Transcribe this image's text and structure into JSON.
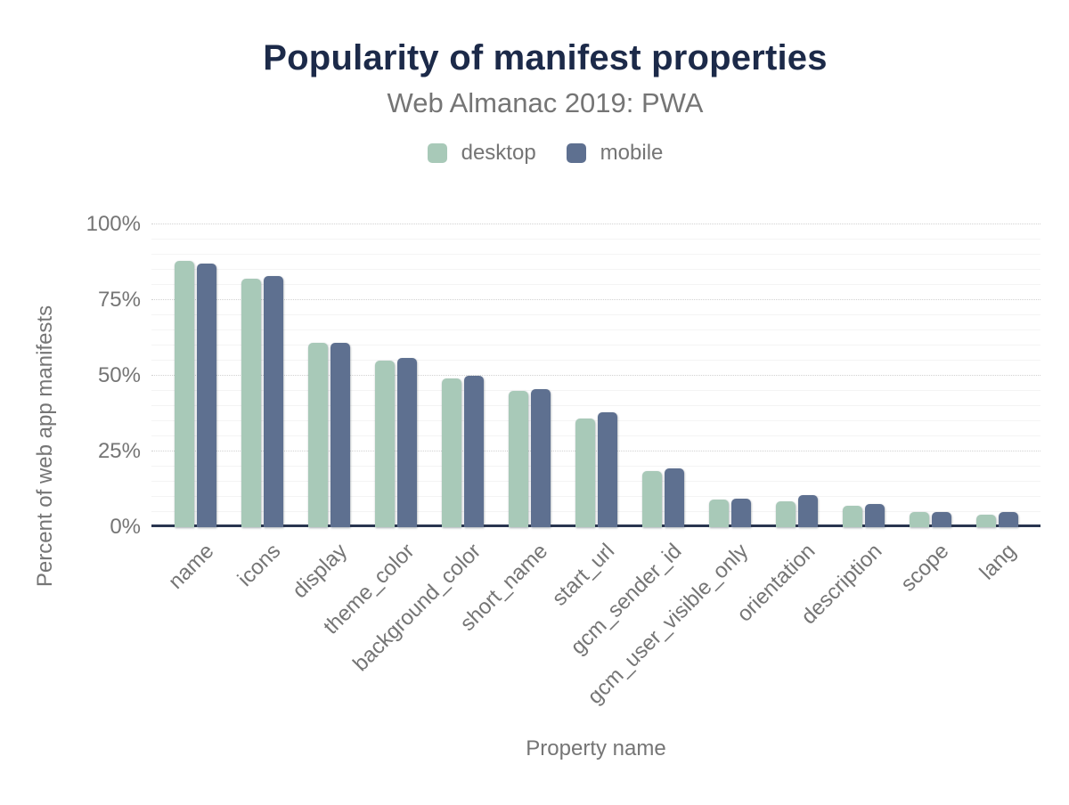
{
  "colors": {
    "title_text": "#1c2a49",
    "muted_text": "#757575",
    "axis_line": "#293550",
    "grid_major": "#d2d2d2",
    "grid_minor": "#f4f4f4",
    "background": "#ffffff",
    "desktop_bar": "#a8c9b8",
    "mobile_bar": "#5e7090"
  },
  "chart_data": {
    "type": "bar",
    "title": "Popularity of manifest properties",
    "subtitle": "Web Almanac 2019: PWA",
    "xlabel": "Property name",
    "ylabel": "Percent of web app manifests",
    "ylim": [
      0,
      100
    ],
    "yticks": [
      0,
      25,
      50,
      75,
      100
    ],
    "ytick_suffix": "%",
    "grid": "horizontal: minor solid every 5%, major dotted every 25%",
    "legend_position": "top",
    "categories": [
      "name",
      "icons",
      "display",
      "theme_color",
      "background_color",
      "short_name",
      "start_url",
      "gcm_sender_id",
      "gcm_user_visible_only",
      "orientation",
      "description",
      "scope",
      "lang"
    ],
    "series": [
      {
        "name": "desktop",
        "color": "#a8c9b8",
        "values": [
          88,
          82,
          61,
          55,
          49,
          45,
          36,
          18.5,
          9,
          8.5,
          7,
          5,
          4
        ]
      },
      {
        "name": "mobile",
        "color": "#5e7090",
        "values": [
          87,
          83,
          61,
          56,
          50,
          45.5,
          38,
          19.5,
          9.5,
          10.5,
          7.5,
          5,
          5
        ]
      }
    ]
  }
}
